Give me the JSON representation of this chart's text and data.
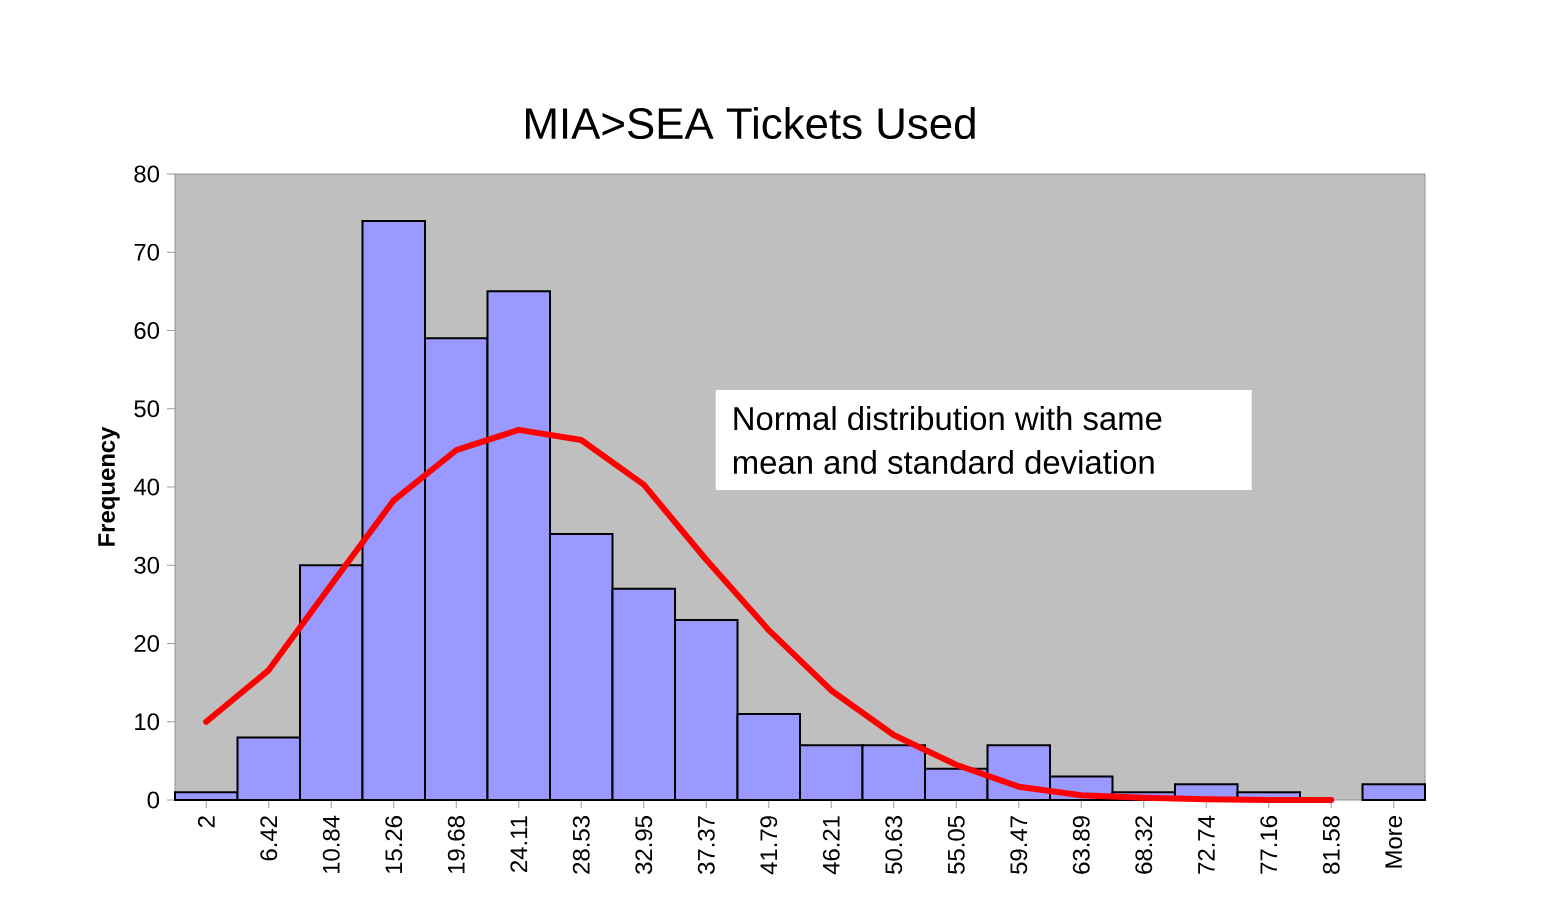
{
  "chart_data": {
    "type": "bar",
    "title": "MIA>SEA Tickets Used",
    "ylabel": "Frequency",
    "categories": [
      "2",
      "6.42",
      "10.84",
      "15.26",
      "19.68",
      "24.11",
      "28.53",
      "32.95",
      "37.37",
      "41.79",
      "46.21",
      "50.63",
      "55.05",
      "59.47",
      "63.89",
      "68.32",
      "72.74",
      "77.16",
      "81.58",
      "More"
    ],
    "series": [
      {
        "color": "#9999ff",
        "values": [
          1,
          8,
          30,
          74,
          59,
          65,
          34,
          27,
          23,
          11,
          7,
          7,
          4,
          7,
          3,
          1,
          2,
          1,
          0,
          2
        ]
      },
      {
        "type": "line",
        "color": "#ff0000",
        "values": [
          10,
          16.6,
          27.5,
          38.3,
          44.7,
          47.3,
          46,
          40.3,
          30.7,
          21.7,
          14,
          8.3,
          4.5,
          1.7,
          0.6,
          0.3,
          0.1,
          0,
          0,
          null
        ]
      }
    ],
    "ylim": [
      0,
      80
    ],
    "yticks": [
      0,
      10,
      20,
      30,
      40,
      50,
      60,
      70,
      80
    ],
    "annotations": [
      "Normal distribution with same mean and standard deviation"
    ]
  }
}
